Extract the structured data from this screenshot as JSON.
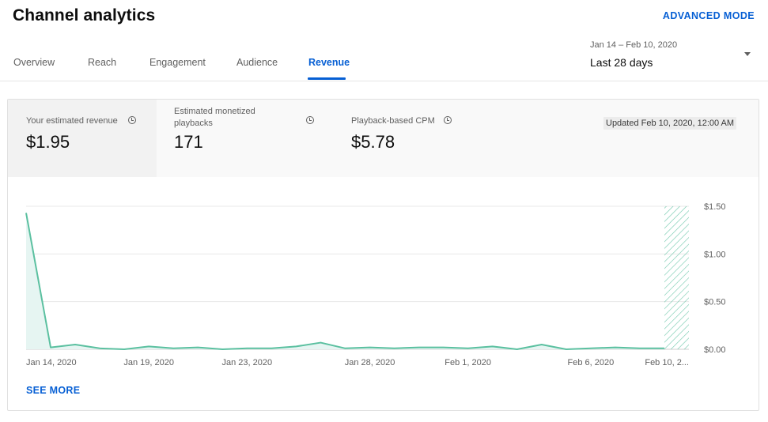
{
  "header": {
    "title": "Channel analytics",
    "advanced_mode": "ADVANCED MODE",
    "date_range": "Jan 14 – Feb 10, 2020",
    "period": "Last 28 days"
  },
  "tabs": [
    {
      "label": "Overview"
    },
    {
      "label": "Reach"
    },
    {
      "label": "Engagement"
    },
    {
      "label": "Audience"
    },
    {
      "label": "Revenue"
    }
  ],
  "active_tab": "Revenue",
  "metrics": [
    {
      "label": "Your estimated revenue",
      "value": "$1.95"
    },
    {
      "label_line1": "Estimated monetized",
      "label_line2": "playbacks",
      "value": "171"
    },
    {
      "label": "Playback-based CPM",
      "value": "$5.78"
    }
  ],
  "updated": "Updated Feb 10, 2020, 12:00 AM",
  "see_more": "SEE MORE",
  "colors": {
    "accent": "#065fd4",
    "line": "#5bc0a0",
    "fill": "#e6f5f2"
  },
  "chart_data": {
    "type": "area",
    "x": [
      "Jan 14",
      "Jan 15",
      "Jan 16",
      "Jan 17",
      "Jan 18",
      "Jan 19",
      "Jan 20",
      "Jan 21",
      "Jan 22",
      "Jan 23",
      "Jan 24",
      "Jan 25",
      "Jan 26",
      "Jan 27",
      "Jan 28",
      "Jan 29",
      "Jan 30",
      "Jan 31",
      "Feb 1",
      "Feb 2",
      "Feb 3",
      "Feb 4",
      "Feb 5",
      "Feb 6",
      "Feb 7",
      "Feb 8",
      "Feb 9",
      "Feb 10"
    ],
    "values": [
      1.43,
      0.02,
      0.05,
      0.01,
      0.0,
      0.03,
      0.01,
      0.02,
      0.0,
      0.01,
      0.01,
      0.03,
      0.07,
      0.01,
      0.02,
      0.01,
      0.02,
      0.02,
      0.01,
      0.03,
      0.0,
      0.05,
      0.0,
      0.01,
      0.02,
      0.01,
      0.01,
      0.01
    ],
    "x_tick_labels": [
      "Jan 14, 2020",
      "Jan 19, 2020",
      "Jan 23, 2020",
      "Jan 28, 2020",
      "Feb 1, 2020",
      "Feb 6, 2020",
      "Feb 10, 2..."
    ],
    "x_tick_dates": [
      "Jan 14",
      "Jan 19",
      "Jan 23",
      "Jan 28",
      "Feb 1",
      "Feb 6",
      "Feb 10"
    ],
    "y_tick_labels": [
      "$1.50",
      "$1.00",
      "$0.50",
      "$0.00"
    ],
    "y_ticks": [
      1.5,
      1.0,
      0.5,
      0
    ],
    "ylim": [
      0,
      1.5
    ],
    "grid": true,
    "y_axis_position": "right",
    "hatched_last_point": true
  }
}
